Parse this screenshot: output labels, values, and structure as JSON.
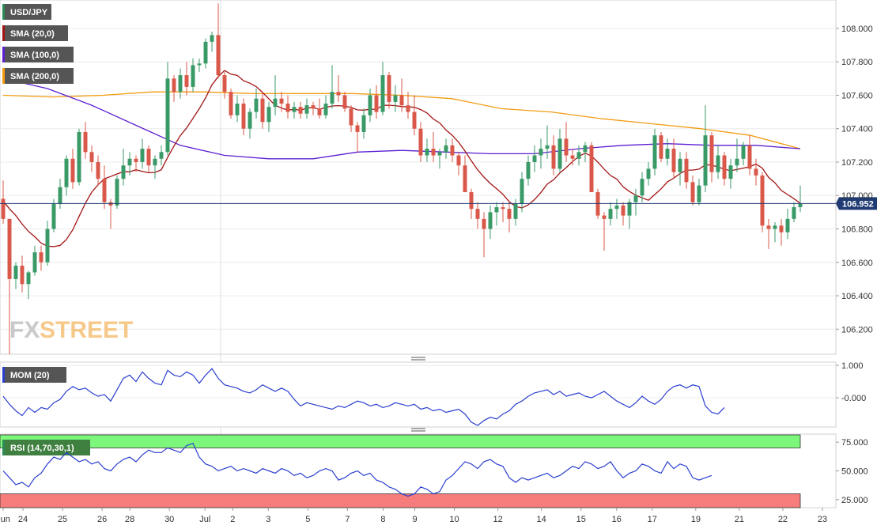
{
  "chart_data": {
    "type": "candlestick",
    "symbol": "USD/JPY",
    "current_price": "106.952",
    "main": {
      "ylim": [
        106.05,
        108.17
      ],
      "yticks": [
        "108.000",
        "107.800",
        "107.600",
        "107.400",
        "107.200",
        "107.000",
        "106.800",
        "106.600",
        "106.400",
        "106.200"
      ],
      "ytick_values": [
        108.0,
        107.8,
        107.6,
        107.4,
        107.2,
        107.0,
        106.8,
        106.6,
        106.4,
        106.2
      ],
      "legend": [
        {
          "label": "USD/JPY",
          "color": "#2e8b57"
        },
        {
          "label": "SMA (20,0)",
          "color": "#a31515"
        },
        {
          "label": "SMA (100,0)",
          "color": "#5b1fd1"
        },
        {
          "label": "SMA (200,0)",
          "color": "#f39c12"
        }
      ],
      "candles": [
        [
          106.98,
          107.09,
          106.83,
          106.86
        ],
        [
          106.86,
          106.86,
          106.05,
          106.5
        ],
        [
          106.5,
          106.6,
          106.44,
          106.58
        ],
        [
          106.58,
          106.64,
          106.42,
          106.47
        ],
        [
          106.47,
          106.55,
          106.38,
          106.54
        ],
        [
          106.54,
          106.7,
          106.52,
          106.66
        ],
        [
          106.66,
          106.7,
          106.55,
          106.6
        ],
        [
          106.6,
          106.85,
          106.58,
          106.8
        ],
        [
          106.8,
          106.98,
          106.78,
          106.95
        ],
        [
          106.95,
          107.1,
          106.92,
          107.05
        ],
        [
          107.05,
          107.24,
          107.0,
          107.22
        ],
        [
          107.22,
          107.28,
          107.04,
          107.08
        ],
        [
          107.08,
          107.4,
          107.06,
          107.38
        ],
        [
          107.38,
          107.44,
          107.22,
          107.26
        ],
        [
          107.26,
          107.3,
          107.14,
          107.2
        ],
        [
          107.2,
          107.24,
          107.06,
          107.1
        ],
        [
          107.1,
          107.18,
          106.92,
          106.96
        ],
        [
          106.96,
          106.98,
          106.8,
          106.94
        ],
        [
          106.94,
          107.12,
          106.92,
          107.1
        ],
        [
          107.1,
          107.28,
          107.06,
          107.18
        ],
        [
          107.18,
          107.26,
          107.12,
          107.22
        ],
        [
          107.22,
          107.24,
          107.14,
          107.2
        ],
        [
          107.2,
          107.34,
          107.16,
          107.28
        ],
        [
          107.28,
          107.3,
          107.14,
          107.18
        ],
        [
          107.18,
          107.24,
          107.1,
          107.22
        ],
        [
          107.22,
          107.3,
          107.18,
          107.26
        ],
        [
          107.26,
          107.8,
          107.24,
          107.7
        ],
        [
          107.7,
          107.72,
          107.56,
          107.62
        ],
        [
          107.62,
          107.76,
          107.58,
          107.72
        ],
        [
          107.72,
          107.8,
          107.6,
          107.65
        ],
        [
          107.65,
          107.82,
          107.62,
          107.78
        ],
        [
          107.78,
          107.82,
          107.74,
          107.79
        ],
        [
          107.79,
          107.94,
          107.76,
          107.92
        ],
        [
          107.92,
          107.98,
          107.86,
          107.96
        ],
        [
          107.96,
          108.15,
          107.7,
          107.72
        ],
        [
          107.72,
          107.74,
          107.58,
          107.62
        ],
        [
          107.62,
          107.64,
          107.46,
          107.48
        ],
        [
          107.48,
          107.6,
          107.44,
          107.55
        ],
        [
          107.55,
          107.58,
          107.36,
          107.4
        ],
        [
          107.4,
          107.52,
          107.34,
          107.5
        ],
        [
          107.5,
          107.64,
          107.46,
          107.58
        ],
        [
          107.58,
          107.62,
          107.4,
          107.44
        ],
        [
          107.44,
          107.56,
          107.38,
          107.53
        ],
        [
          107.53,
          107.72,
          107.48,
          107.58
        ],
        [
          107.58,
          107.62,
          107.5,
          107.55
        ],
        [
          107.55,
          107.6,
          107.46,
          107.5
        ],
        [
          107.5,
          107.56,
          107.46,
          107.53
        ],
        [
          107.53,
          107.56,
          107.46,
          107.49
        ],
        [
          107.49,
          107.58,
          107.46,
          107.54
        ],
        [
          107.54,
          107.56,
          107.48,
          107.52
        ],
        [
          107.52,
          107.58,
          107.46,
          107.48
        ],
        [
          107.48,
          107.6,
          107.46,
          107.55
        ],
        [
          107.55,
          107.78,
          107.52,
          107.62
        ],
        [
          107.62,
          107.72,
          107.56,
          107.6
        ],
        [
          107.6,
          107.62,
          107.5,
          107.52
        ],
        [
          107.52,
          107.54,
          107.38,
          107.42
        ],
        [
          107.42,
          107.44,
          107.26,
          107.38
        ],
        [
          107.38,
          107.52,
          107.34,
          107.48
        ],
        [
          107.48,
          107.64,
          107.44,
          107.6
        ],
        [
          107.6,
          107.66,
          107.46,
          107.5
        ],
        [
          107.5,
          107.8,
          107.48,
          107.72
        ],
        [
          107.72,
          107.74,
          107.52,
          107.56
        ],
        [
          107.56,
          107.66,
          107.5,
          107.6
        ],
        [
          107.6,
          107.7,
          107.5,
          107.54
        ],
        [
          107.54,
          107.62,
          107.46,
          107.5
        ],
        [
          107.5,
          107.6,
          107.36,
          107.4
        ],
        [
          107.4,
          107.44,
          107.2,
          107.24
        ],
        [
          107.24,
          107.34,
          107.2,
          107.28
        ],
        [
          107.28,
          107.38,
          107.2,
          107.24
        ],
        [
          107.24,
          107.28,
          107.16,
          107.26
        ],
        [
          107.26,
          107.34,
          107.22,
          107.3
        ],
        [
          107.3,
          107.34,
          107.2,
          107.24
        ],
        [
          107.24,
          107.26,
          107.12,
          107.18
        ],
        [
          107.18,
          107.24,
          107.04,
          107.02
        ],
        [
          107.02,
          107.04,
          106.86,
          106.92
        ],
        [
          106.92,
          106.96,
          106.8,
          106.86
        ],
        [
          106.86,
          106.9,
          106.63,
          106.8
        ],
        [
          106.8,
          106.94,
          106.74,
          106.9
        ],
        [
          106.9,
          106.96,
          106.82,
          106.93
        ],
        [
          106.93,
          106.96,
          106.84,
          106.92
        ],
        [
          106.92,
          106.96,
          106.78,
          106.86
        ],
        [
          106.86,
          106.98,
          106.82,
          106.95
        ],
        [
          106.95,
          107.14,
          106.9,
          107.1
        ],
        [
          107.1,
          107.24,
          107.06,
          107.2
        ],
        [
          107.2,
          107.3,
          107.14,
          107.24
        ],
        [
          107.24,
          107.34,
          107.16,
          107.28
        ],
        [
          107.28,
          107.42,
          107.22,
          107.3
        ],
        [
          107.3,
          107.36,
          107.12,
          107.16
        ],
        [
          107.16,
          107.4,
          107.14,
          107.34
        ],
        [
          107.34,
          107.44,
          107.2,
          107.24
        ],
        [
          107.24,
          107.28,
          107.18,
          107.22
        ],
        [
          107.22,
          107.3,
          107.18,
          107.26
        ],
        [
          107.26,
          107.32,
          107.2,
          107.3
        ],
        [
          107.3,
          107.32,
          107.04,
          107.02
        ],
        [
          107.02,
          107.04,
          106.86,
          106.88
        ],
        [
          106.88,
          106.9,
          106.67,
          106.86
        ],
        [
          106.86,
          106.96,
          106.82,
          106.92
        ],
        [
          106.92,
          106.98,
          106.86,
          106.94
        ],
        [
          106.94,
          106.96,
          106.82,
          106.88
        ],
        [
          106.88,
          106.98,
          106.8,
          106.96
        ],
        [
          106.96,
          107.04,
          106.88,
          107.0
        ],
        [
          107.0,
          107.14,
          106.96,
          107.1
        ],
        [
          107.1,
          107.2,
          107.06,
          107.16
        ],
        [
          107.16,
          107.4,
          107.12,
          107.36
        ],
        [
          107.36,
          107.38,
          107.2,
          107.22
        ],
        [
          107.22,
          107.34,
          107.18,
          107.28
        ],
        [
          107.28,
          107.34,
          107.1,
          107.14
        ],
        [
          107.14,
          107.26,
          107.06,
          107.22
        ],
        [
          107.22,
          107.26,
          107.04,
          107.08
        ],
        [
          107.08,
          107.12,
          106.94,
          106.96
        ],
        [
          106.96,
          107.1,
          106.94,
          107.06
        ],
        [
          107.06,
          107.54,
          107.02,
          107.36
        ],
        [
          107.36,
          107.38,
          107.08,
          107.14
        ],
        [
          107.14,
          107.3,
          107.1,
          107.24
        ],
        [
          107.24,
          107.26,
          107.06,
          107.1
        ],
        [
          107.1,
          107.22,
          107.04,
          107.18
        ],
        [
          107.18,
          107.34,
          107.14,
          107.22
        ],
        [
          107.22,
          107.32,
          107.18,
          107.3
        ],
        [
          107.3,
          107.36,
          107.12,
          107.16
        ],
        [
          107.16,
          107.22,
          107.06,
          107.12
        ],
        [
          107.12,
          107.14,
          106.78,
          106.82
        ],
        [
          106.82,
          106.86,
          106.68,
          106.8
        ],
        [
          106.8,
          106.84,
          106.72,
          106.82
        ],
        [
          106.82,
          106.86,
          106.7,
          106.78
        ],
        [
          106.78,
          106.92,
          106.74,
          106.86
        ],
        [
          106.86,
          106.96,
          106.84,
          106.93
        ],
        [
          106.93,
          107.06,
          106.9,
          106.95
        ]
      ],
      "sma20_start": 106.98,
      "sma100": [
        107.7,
        107.64,
        107.54,
        107.42,
        107.3,
        107.24,
        107.22,
        107.22,
        107.26,
        107.27,
        107.26,
        107.25,
        107.25,
        107.28,
        107.3,
        107.31,
        107.3,
        107.3,
        107.28
      ],
      "sma200": [
        107.6,
        107.59,
        107.6,
        107.62,
        107.62,
        107.61,
        107.61,
        107.61,
        107.6,
        107.58,
        107.52,
        107.5,
        107.46,
        107.43,
        107.4,
        107.36,
        107.28
      ]
    },
    "x_labels": [
      "Jun",
      "24",
      "25",
      "26",
      "28",
      "30",
      "Jul",
      "2",
      "3",
      "5",
      "7",
      "8",
      "9",
      "10",
      "12",
      "14",
      "15",
      "16",
      "17",
      "19",
      "21",
      "22",
      "23"
    ],
    "mom": {
      "label": "MOM (20)",
      "ylim": [
        -0.9,
        1.1
      ],
      "yticks": [
        "1.000",
        "-0.000"
      ],
      "ytick_values": [
        1.0,
        0.0
      ],
      "values": [
        0.05,
        -0.2,
        -0.4,
        -0.55,
        -0.3,
        -0.45,
        -0.3,
        -0.35,
        -0.15,
        -0.05,
        0.2,
        0.35,
        0.25,
        0.3,
        0.15,
        0.05,
        0.1,
        -0.1,
        0.25,
        0.6,
        0.7,
        0.5,
        0.8,
        0.6,
        0.45,
        0.4,
        0.85,
        0.7,
        0.65,
        0.8,
        0.7,
        0.45,
        0.7,
        0.9,
        0.6,
        0.4,
        0.35,
        0.3,
        0.2,
        0.15,
        0.25,
        0.4,
        0.3,
        0.2,
        0.3,
        0.2,
        -0.05,
        -0.25,
        -0.15,
        -0.2,
        -0.25,
        -0.3,
        -0.35,
        -0.25,
        -0.3,
        -0.2,
        -0.1,
        -0.15,
        -0.25,
        -0.2,
        -0.3,
        -0.25,
        -0.15,
        -0.2,
        -0.25,
        -0.2,
        -0.35,
        -0.3,
        -0.4,
        -0.35,
        -0.45,
        -0.4,
        -0.35,
        -0.5,
        -0.75,
        -0.85,
        -0.7,
        -0.6,
        -0.65,
        -0.5,
        -0.4,
        -0.2,
        -0.1,
        0.05,
        0.15,
        0.2,
        0.25,
        0.1,
        0.2,
        0.05,
        0.1,
        0.15,
        0.05,
        0.0,
        0.1,
        0.2,
        0.05,
        -0.1,
        -0.2,
        -0.3,
        -0.15,
        0.05,
        -0.1,
        -0.2,
        -0.05,
        0.2,
        0.35,
        0.4,
        0.3,
        0.4,
        0.35,
        -0.25,
        -0.45,
        -0.5,
        -0.3
      ],
      "color": "#2a3fcf"
    },
    "rsi": {
      "label": "RSI (14,70,30,1)",
      "ylim": [
        18,
        82
      ],
      "yticks": [
        "75.000",
        "50.000",
        "25.000"
      ],
      "ytick_values": [
        75,
        50,
        25
      ],
      "upper": 70,
      "lower": 30,
      "values": [
        50,
        44,
        38,
        40,
        36,
        44,
        48,
        56,
        62,
        60,
        66,
        62,
        58,
        60,
        56,
        58,
        52,
        50,
        56,
        60,
        62,
        58,
        64,
        68,
        66,
        66,
        70,
        68,
        66,
        72,
        74,
        62,
        56,
        54,
        50,
        52,
        54,
        50,
        52,
        50,
        48,
        52,
        50,
        48,
        52,
        50,
        46,
        48,
        44,
        46,
        50,
        52,
        50,
        42,
        44,
        48,
        50,
        46,
        48,
        42,
        40,
        36,
        34,
        30,
        28,
        30,
        36,
        34,
        30,
        32,
        42,
        46,
        52,
        58,
        56,
        52,
        58,
        60,
        56,
        54,
        44,
        40,
        44,
        42,
        44,
        46,
        48,
        44,
        46,
        50,
        54,
        52,
        58,
        56,
        52,
        54,
        58,
        50,
        44,
        48,
        50,
        56,
        54,
        50,
        48,
        58,
        52,
        56,
        54,
        44,
        42,
        44,
        46
      ],
      "color": "#2a3fcf",
      "upper_fill": "#7cf77c",
      "lower_fill": "#f77c7c"
    },
    "colors": {
      "bull": "#3a9a67",
      "bear": "#d9584a",
      "sma20": "#a31515",
      "sma100": "#5b1fd1",
      "sma200": "#f39c12",
      "price_line": "#1f3b73"
    },
    "watermark": "FXSTREET"
  }
}
